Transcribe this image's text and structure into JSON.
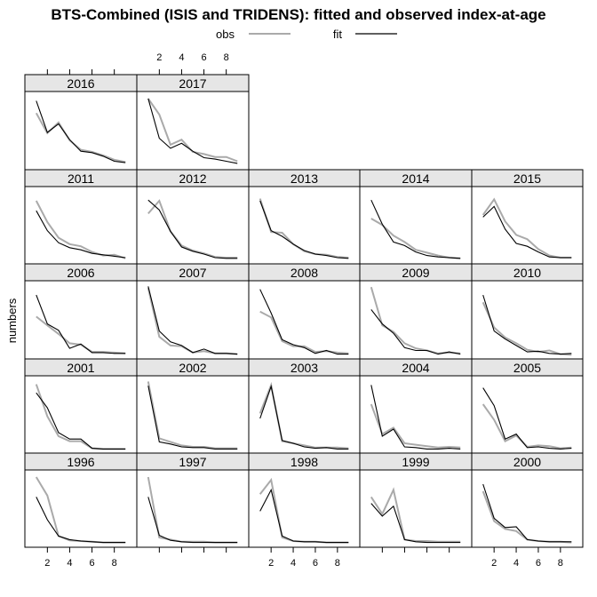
{
  "chart_data": {
    "type": "line",
    "title": "BTS-Combined (ISIS and TRIDENS): fitted and observed index-at-age",
    "ylabel": "numbers",
    "xlabel": "",
    "x": [
      1,
      2,
      3,
      4,
      5,
      6,
      7,
      8,
      9
    ],
    "x_ticks": [
      2,
      4,
      6,
      8
    ],
    "xlim": [
      0.3,
      9.7
    ],
    "ylim": [
      0,
      1
    ],
    "legend": {
      "placement": "top",
      "entries": [
        {
          "label": "obs",
          "color": "#aaaaaa"
        },
        {
          "label": "fit",
          "color": "#000000"
        }
      ]
    },
    "series_colors": {
      "obs": "#aaaaaa",
      "fit": "#000000"
    },
    "panels": [
      {
        "year": "2016",
        "obs": [
          0.75,
          0.47,
          0.62,
          0.37,
          0.24,
          0.21,
          0.16,
          0.1,
          0.07
        ],
        "fit": [
          0.92,
          0.48,
          0.6,
          0.38,
          0.22,
          0.2,
          0.15,
          0.08,
          0.06
        ]
      },
      {
        "year": "2017",
        "obs": [
          0.95,
          0.73,
          0.31,
          0.38,
          0.21,
          0.18,
          0.14,
          0.14,
          0.08
        ],
        "fit": [
          0.95,
          0.4,
          0.26,
          0.33,
          0.22,
          0.13,
          0.11,
          0.08,
          0.05
        ]
      },
      {
        "year": "2011",
        "obs": [
          0.85,
          0.55,
          0.33,
          0.24,
          0.21,
          0.13,
          0.08,
          0.09,
          0.04
        ],
        "fit": [
          0.71,
          0.43,
          0.26,
          0.19,
          0.16,
          0.11,
          0.09,
          0.07,
          0.05
        ]
      },
      {
        "year": "2012",
        "obs": [
          0.67,
          0.85,
          0.42,
          0.22,
          0.15,
          0.11,
          0.06,
          0.05,
          0.05
        ],
        "fit": [
          0.86,
          0.72,
          0.42,
          0.2,
          0.14,
          0.1,
          0.05,
          0.04,
          0.04
        ]
      },
      {
        "year": "2013",
        "obs": [
          0.88,
          0.41,
          0.4,
          0.24,
          0.14,
          0.1,
          0.09,
          0.06,
          0.05
        ],
        "fit": [
          0.85,
          0.43,
          0.35,
          0.24,
          0.15,
          0.1,
          0.08,
          0.05,
          0.04
        ]
      },
      {
        "year": "2014",
        "obs": [
          0.6,
          0.51,
          0.36,
          0.27,
          0.16,
          0.12,
          0.08,
          0.05,
          0.04
        ],
        "fit": [
          0.86,
          0.52,
          0.27,
          0.22,
          0.13,
          0.08,
          0.06,
          0.05,
          0.04
        ]
      },
      {
        "year": "2015",
        "obs": [
          0.65,
          0.87,
          0.56,
          0.37,
          0.31,
          0.17,
          0.08,
          0.05,
          0.05
        ],
        "fit": [
          0.62,
          0.77,
          0.45,
          0.25,
          0.21,
          0.13,
          0.06,
          0.05,
          0.05
        ]
      },
      {
        "year": "2006",
        "obs": [
          0.55,
          0.43,
          0.31,
          0.18,
          0.16,
          0.06,
          0.06,
          0.05,
          0.04
        ],
        "fit": [
          0.85,
          0.45,
          0.36,
          0.11,
          0.17,
          0.05,
          0.05,
          0.04,
          0.04
        ]
      },
      {
        "year": "2007",
        "obs": [
          0.95,
          0.27,
          0.15,
          0.14,
          0.05,
          0.07,
          0.04,
          0.04,
          0.03
        ],
        "fit": [
          0.97,
          0.35,
          0.2,
          0.15,
          0.05,
          0.1,
          0.04,
          0.04,
          0.03
        ]
      },
      {
        "year": "2008",
        "obs": [
          0.62,
          0.54,
          0.21,
          0.14,
          0.14,
          0.06,
          0.07,
          0.05,
          0.04
        ],
        "fit": [
          0.93,
          0.6,
          0.23,
          0.16,
          0.12,
          0.04,
          0.08,
          0.03,
          0.03
        ]
      },
      {
        "year": "2009",
        "obs": [
          0.96,
          0.43,
          0.34,
          0.18,
          0.11,
          0.08,
          0.04,
          0.05,
          0.04
        ],
        "fit": [
          0.65,
          0.45,
          0.32,
          0.12,
          0.08,
          0.08,
          0.03,
          0.06,
          0.03
        ]
      },
      {
        "year": "2010",
        "obs": [
          0.75,
          0.4,
          0.26,
          0.18,
          0.09,
          0.06,
          0.08,
          0.03,
          0.02
        ],
        "fit": [
          0.85,
          0.35,
          0.24,
          0.15,
          0.06,
          0.07,
          0.04,
          0.03,
          0.04
        ]
      },
      {
        "year": "2001",
        "obs": [
          0.93,
          0.48,
          0.2,
          0.13,
          0.13,
          0.03,
          0.02,
          0.02,
          0.02
        ],
        "fit": [
          0.81,
          0.6,
          0.25,
          0.16,
          0.16,
          0.03,
          0.02,
          0.02,
          0.02
        ]
      },
      {
        "year": "2002",
        "obs": [
          0.97,
          0.17,
          0.12,
          0.07,
          0.05,
          0.05,
          0.03,
          0.03,
          0.03
        ],
        "fit": [
          0.91,
          0.12,
          0.09,
          0.05,
          0.04,
          0.04,
          0.02,
          0.02,
          0.02
        ]
      },
      {
        "year": "2003",
        "obs": [
          0.52,
          0.92,
          0.13,
          0.1,
          0.07,
          0.04,
          0.04,
          0.04,
          0.03
        ],
        "fit": [
          0.45,
          0.9,
          0.14,
          0.1,
          0.05,
          0.03,
          0.04,
          0.02,
          0.02
        ]
      },
      {
        "year": "2004",
        "obs": [
          0.65,
          0.23,
          0.32,
          0.1,
          0.08,
          0.06,
          0.04,
          0.05,
          0.04
        ],
        "fit": [
          0.92,
          0.2,
          0.3,
          0.05,
          0.04,
          0.02,
          0.02,
          0.03,
          0.02
        ]
      },
      {
        "year": "2005",
        "obs": [
          0.65,
          0.43,
          0.13,
          0.21,
          0.05,
          0.07,
          0.06,
          0.03,
          0.04
        ],
        "fit": [
          0.88,
          0.63,
          0.16,
          0.23,
          0.04,
          0.05,
          0.03,
          0.02,
          0.03
        ]
      },
      {
        "year": "1996",
        "obs": [
          0.95,
          0.69,
          0.12,
          0.06,
          0.05,
          0.04,
          0.03,
          0.03,
          0.03
        ],
        "fit": [
          0.67,
          0.35,
          0.12,
          0.07,
          0.05,
          0.04,
          0.03,
          0.03,
          0.03
        ]
      },
      {
        "year": "1997",
        "obs": [
          0.95,
          0.1,
          0.07,
          0.04,
          0.04,
          0.04,
          0.03,
          0.03,
          0.03
        ],
        "fit": [
          0.67,
          0.13,
          0.06,
          0.04,
          0.03,
          0.03,
          0.03,
          0.03,
          0.03
        ]
      },
      {
        "year": "1998",
        "obs": [
          0.71,
          0.91,
          0.1,
          0.05,
          0.04,
          0.04,
          0.03,
          0.03,
          0.03
        ],
        "fit": [
          0.47,
          0.77,
          0.12,
          0.05,
          0.04,
          0.04,
          0.03,
          0.03,
          0.03
        ]
      },
      {
        "year": "1999",
        "obs": [
          0.67,
          0.43,
          0.77,
          0.07,
          0.05,
          0.05,
          0.04,
          0.04,
          0.04
        ],
        "fit": [
          0.58,
          0.4,
          0.54,
          0.07,
          0.04,
          0.03,
          0.03,
          0.03,
          0.03
        ]
      },
      {
        "year": "2000",
        "obs": [
          0.75,
          0.33,
          0.22,
          0.19,
          0.07,
          0.05,
          0.04,
          0.04,
          0.03
        ],
        "fit": [
          0.85,
          0.37,
          0.24,
          0.25,
          0.07,
          0.05,
          0.04,
          0.04,
          0.04
        ]
      }
    ]
  }
}
